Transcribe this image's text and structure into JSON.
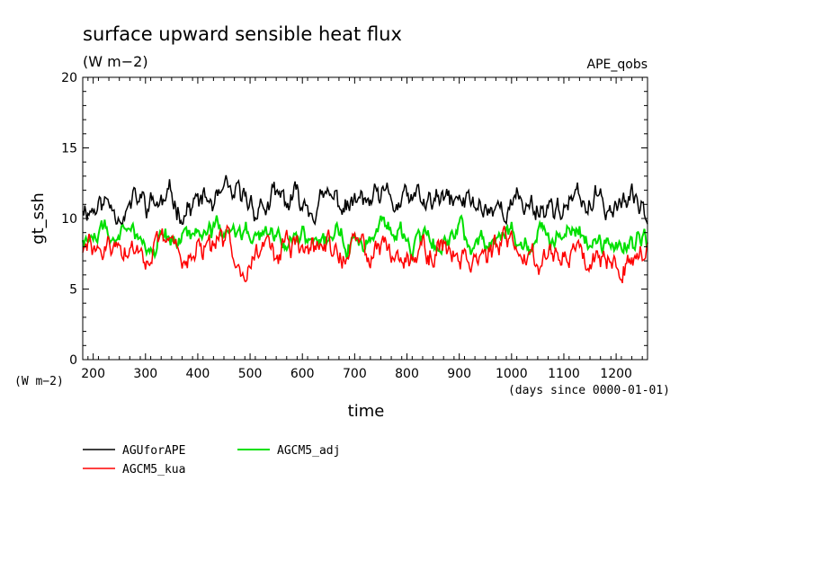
{
  "chart_data": {
    "type": "line",
    "title": "surface upward sensible heat flux",
    "units": "(W m−2)",
    "tag": "APE_qobs",
    "xlabel": "time",
    "xunits": "(days since 0000-01-01)",
    "ylabel": "gt_ssh",
    "yunits": "(W m−2)",
    "xlim": [
      180,
      1260
    ],
    "ylim": [
      0,
      20
    ],
    "yticks": [
      0,
      5,
      10,
      15,
      20
    ],
    "xticks": [
      200,
      300,
      400,
      500,
      600,
      700,
      800,
      900,
      1000,
      1100,
      1200
    ],
    "series": [
      {
        "name": "AGUforAPE",
        "color": "#000000",
        "mean": 11.0,
        "amp": 0.9,
        "min": 9.6,
        "max": 13.9,
        "seed": 11
      },
      {
        "name": "AGCM5_kua",
        "color": "#ff0000",
        "mean": 7.7,
        "amp": 0.9,
        "min": 5.4,
        "max": 10.2,
        "seed": 29
      },
      {
        "name": "AGCM5_adj",
        "color": "#00e000",
        "mean": 8.7,
        "amp": 0.7,
        "min": 7.0,
        "max": 10.5,
        "seed": 47
      }
    ]
  }
}
